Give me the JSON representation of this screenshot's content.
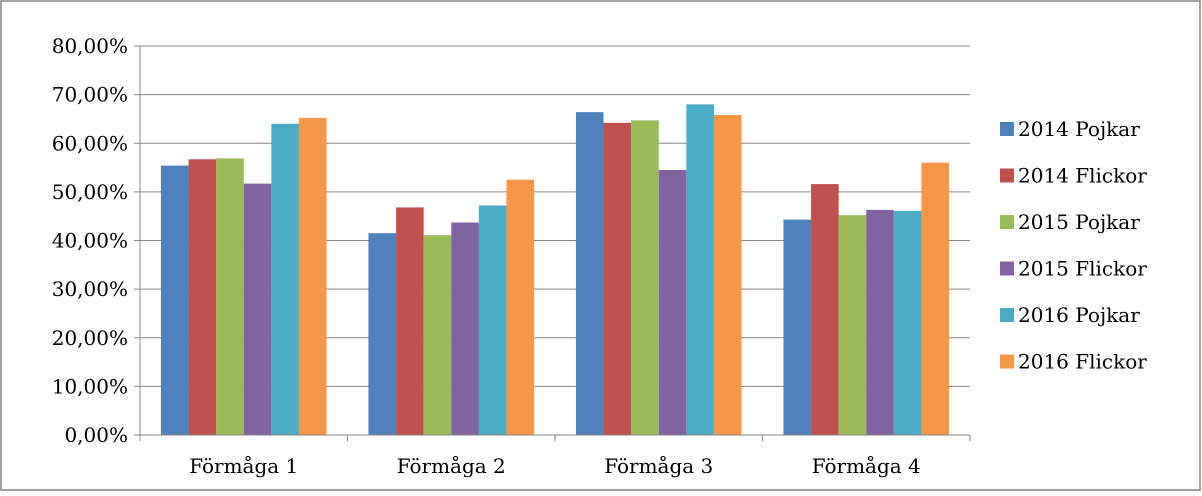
{
  "chart_data": {
    "type": "bar",
    "title": "",
    "xlabel": "",
    "ylabel": "",
    "categories": [
      "Förmåga 1",
      "Förmåga 2",
      "Förmåga 3",
      "Förmåga 4"
    ],
    "series": [
      {
        "name": "2014 Pojkar",
        "color": "#4f81bd",
        "values": [
          0.554,
          0.415,
          0.664,
          0.443
        ]
      },
      {
        "name": "2014 Flickor",
        "color": "#c0504d",
        "values": [
          0.567,
          0.468,
          0.642,
          0.516
        ]
      },
      {
        "name": "2015 Pojkar",
        "color": "#9bbb59",
        "values": [
          0.569,
          0.411,
          0.647,
          0.452
        ]
      },
      {
        "name": "2015 Flickor",
        "color": "#8064a2",
        "values": [
          0.517,
          0.437,
          0.545,
          0.463
        ]
      },
      {
        "name": "2016 Pojkar",
        "color": "#4bacc6",
        "values": [
          0.64,
          0.472,
          0.68,
          0.461
        ]
      },
      {
        "name": "2016 Flickor",
        "color": "#f79646",
        "values": [
          0.652,
          0.525,
          0.658,
          0.56
        ]
      }
    ],
    "ylim": [
      0,
      0.8
    ],
    "ytick_step": 0.1,
    "ytick_labels": [
      "0,00%",
      "10,00%",
      "20,00%",
      "30,00%",
      "40,00%",
      "50,00%",
      "60,00%",
      "70,00%",
      "80,00%"
    ],
    "grid": true,
    "legend_position": "right"
  }
}
